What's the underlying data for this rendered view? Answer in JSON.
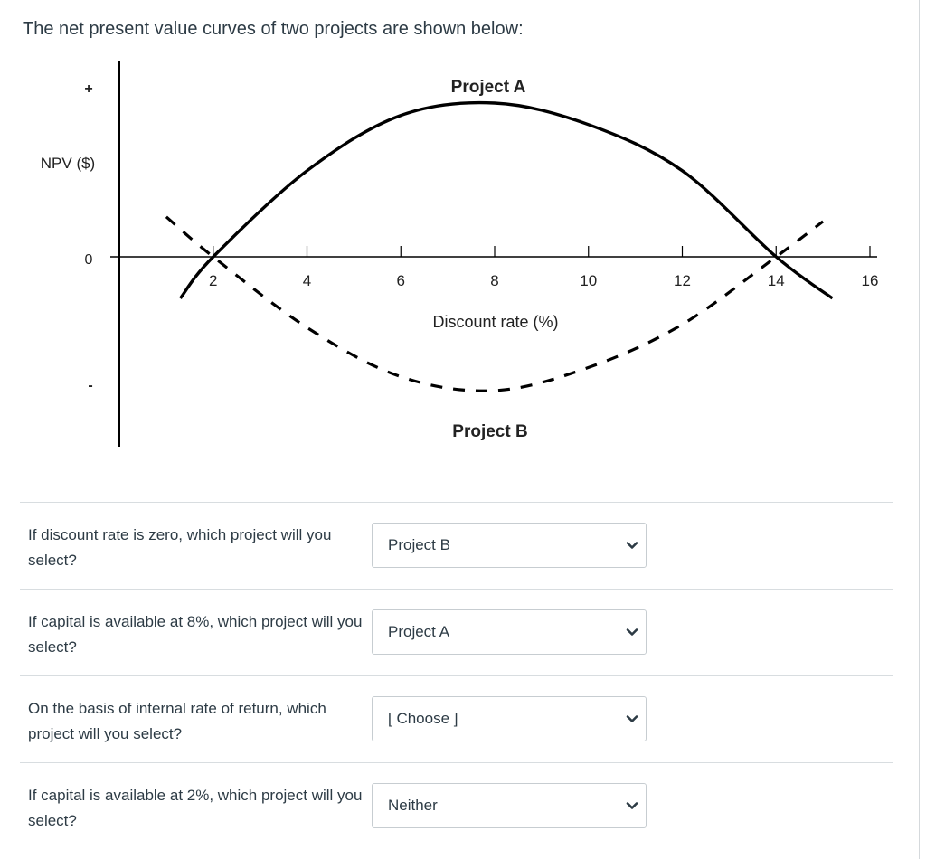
{
  "question": {
    "text": "The net present value curves of two projects are shown below:"
  },
  "chart_data": {
    "type": "line",
    "xlabel": "Discount rate (%)",
    "ylabel": "NPV ($)",
    "y_markers": [
      "+",
      "0",
      "-"
    ],
    "x_ticks": [
      2,
      4,
      6,
      8,
      10,
      12,
      14,
      16
    ],
    "x_tick_labels": [
      "2",
      "4",
      "6",
      "8",
      "10",
      "12",
      "14",
      "16"
    ],
    "xlim": [
      0,
      16.5
    ],
    "ylim": [
      -1,
      1
    ],
    "series": [
      {
        "name": "Project A",
        "style": "solid",
        "x": [
          1.3,
          2,
          4,
          6,
          8,
          10,
          12,
          14,
          15.2
        ],
        "y": [
          -0.27,
          0,
          0.56,
          0.92,
          1.0,
          0.86,
          0.56,
          0,
          -0.27
        ]
      },
      {
        "name": "Project B",
        "style": "dashed",
        "x": [
          1.0,
          2,
          4,
          6,
          8,
          10,
          12,
          14,
          15.0
        ],
        "y": [
          0.26,
          0,
          -0.46,
          -0.78,
          -0.87,
          -0.72,
          -0.44,
          0,
          0.23
        ]
      }
    ],
    "colors": {
      "line": "#000000",
      "axis": "#000000"
    }
  },
  "questions": [
    {
      "label": "If discount rate is zero, which project will you select?",
      "selected": "Project B",
      "chevron_icon": "chevron-down-icon"
    },
    {
      "label": "If capital is available at 8%, which project will you select?",
      "selected": "Project A",
      "chevron_icon": "chevron-down-icon"
    },
    {
      "label": "On the basis of internal rate of return, which project will you select?",
      "selected": "[ Choose ]",
      "chevron_icon": "chevron-down-icon"
    },
    {
      "label": "If capital is available at 2%, which project will you select?",
      "selected": "Neither",
      "chevron_icon": "chevron-down-icon"
    }
  ]
}
